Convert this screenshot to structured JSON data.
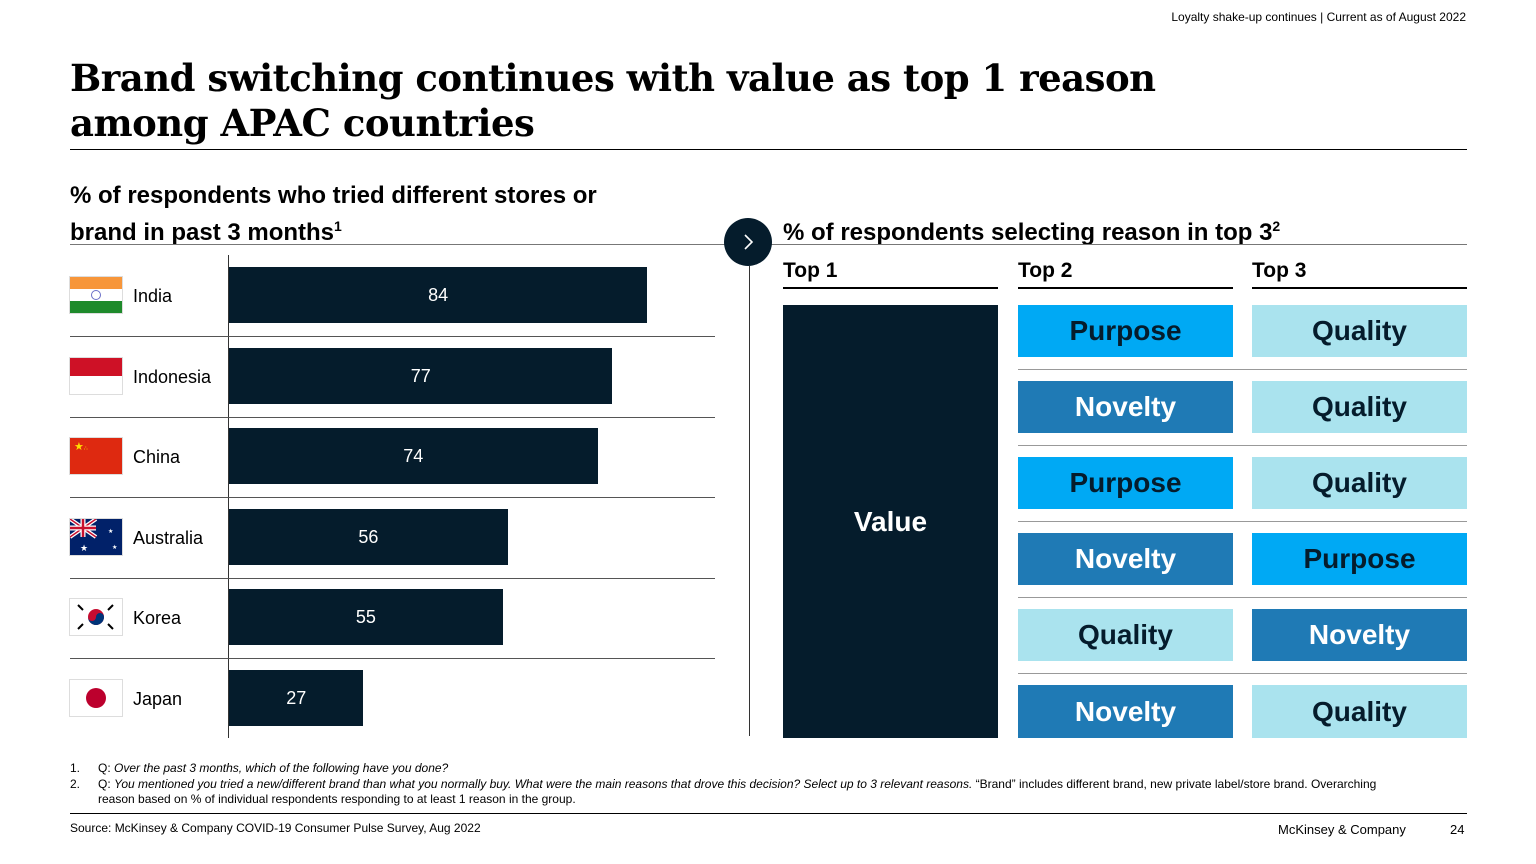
{
  "header": {
    "top_note": "Loyalty shake-up continues | Current as of August 2022",
    "title": "Brand switching continues with value as top 1 reason among APAC countries"
  },
  "colors": {
    "navy": "#051c2c",
    "cyan": "#00a9f4",
    "blue": "#1f7ab5",
    "light": "#aae3ee"
  },
  "chart_data": [
    {
      "type": "bar",
      "orientation": "horizontal",
      "title": "% of respondents who tried different stores or brand in past 3 months",
      "title_sup": "1",
      "categories": [
        "India",
        "Indonesia",
        "China",
        "Australia",
        "Korea",
        "Japan"
      ],
      "values": [
        84,
        77,
        74,
        56,
        55,
        27
      ],
      "flags": [
        "india-flag",
        "indonesia-flag",
        "china-flag",
        "australia-flag",
        "korea-flag",
        "japan-flag"
      ]
    },
    {
      "type": "table",
      "title": "% of respondents selecting reason in top 3",
      "title_sup": "2",
      "columns": [
        "Top 1",
        "Top 2",
        "Top 3"
      ],
      "top1_all": "Value",
      "rows": [
        [
          "Value",
          "Purpose",
          "Quality"
        ],
        [
          "Value",
          "Novelty",
          "Quality"
        ],
        [
          "Value",
          "Purpose",
          "Quality"
        ],
        [
          "Value",
          "Novelty",
          "Purpose"
        ],
        [
          "Value",
          "Quality",
          "Novelty"
        ],
        [
          "Value",
          "Novelty",
          "Quality"
        ]
      ]
    }
  ],
  "footnotes": {
    "n1": "1.",
    "q1_prefix": "Q:",
    "q1": "Over the past 3 months, which of the following have you done?",
    "n2": "2.",
    "q2_prefix": "Q:",
    "q2": "You mentioned you tried a new/different brand than what you normally buy. What were the main reasons that drove this decision? Select up to 3 relevant reasons.",
    "q2_rest": "“Brand” includes different brand, new private label/store brand. Overarching reason based on % of individual respondents responding to at least 1 reason in the group.",
    "source": "Source: McKinsey & Company COVID-19 Consumer Pulse Survey, Aug 2022"
  },
  "footer": {
    "company": "McKinsey & Company",
    "page": "24"
  }
}
